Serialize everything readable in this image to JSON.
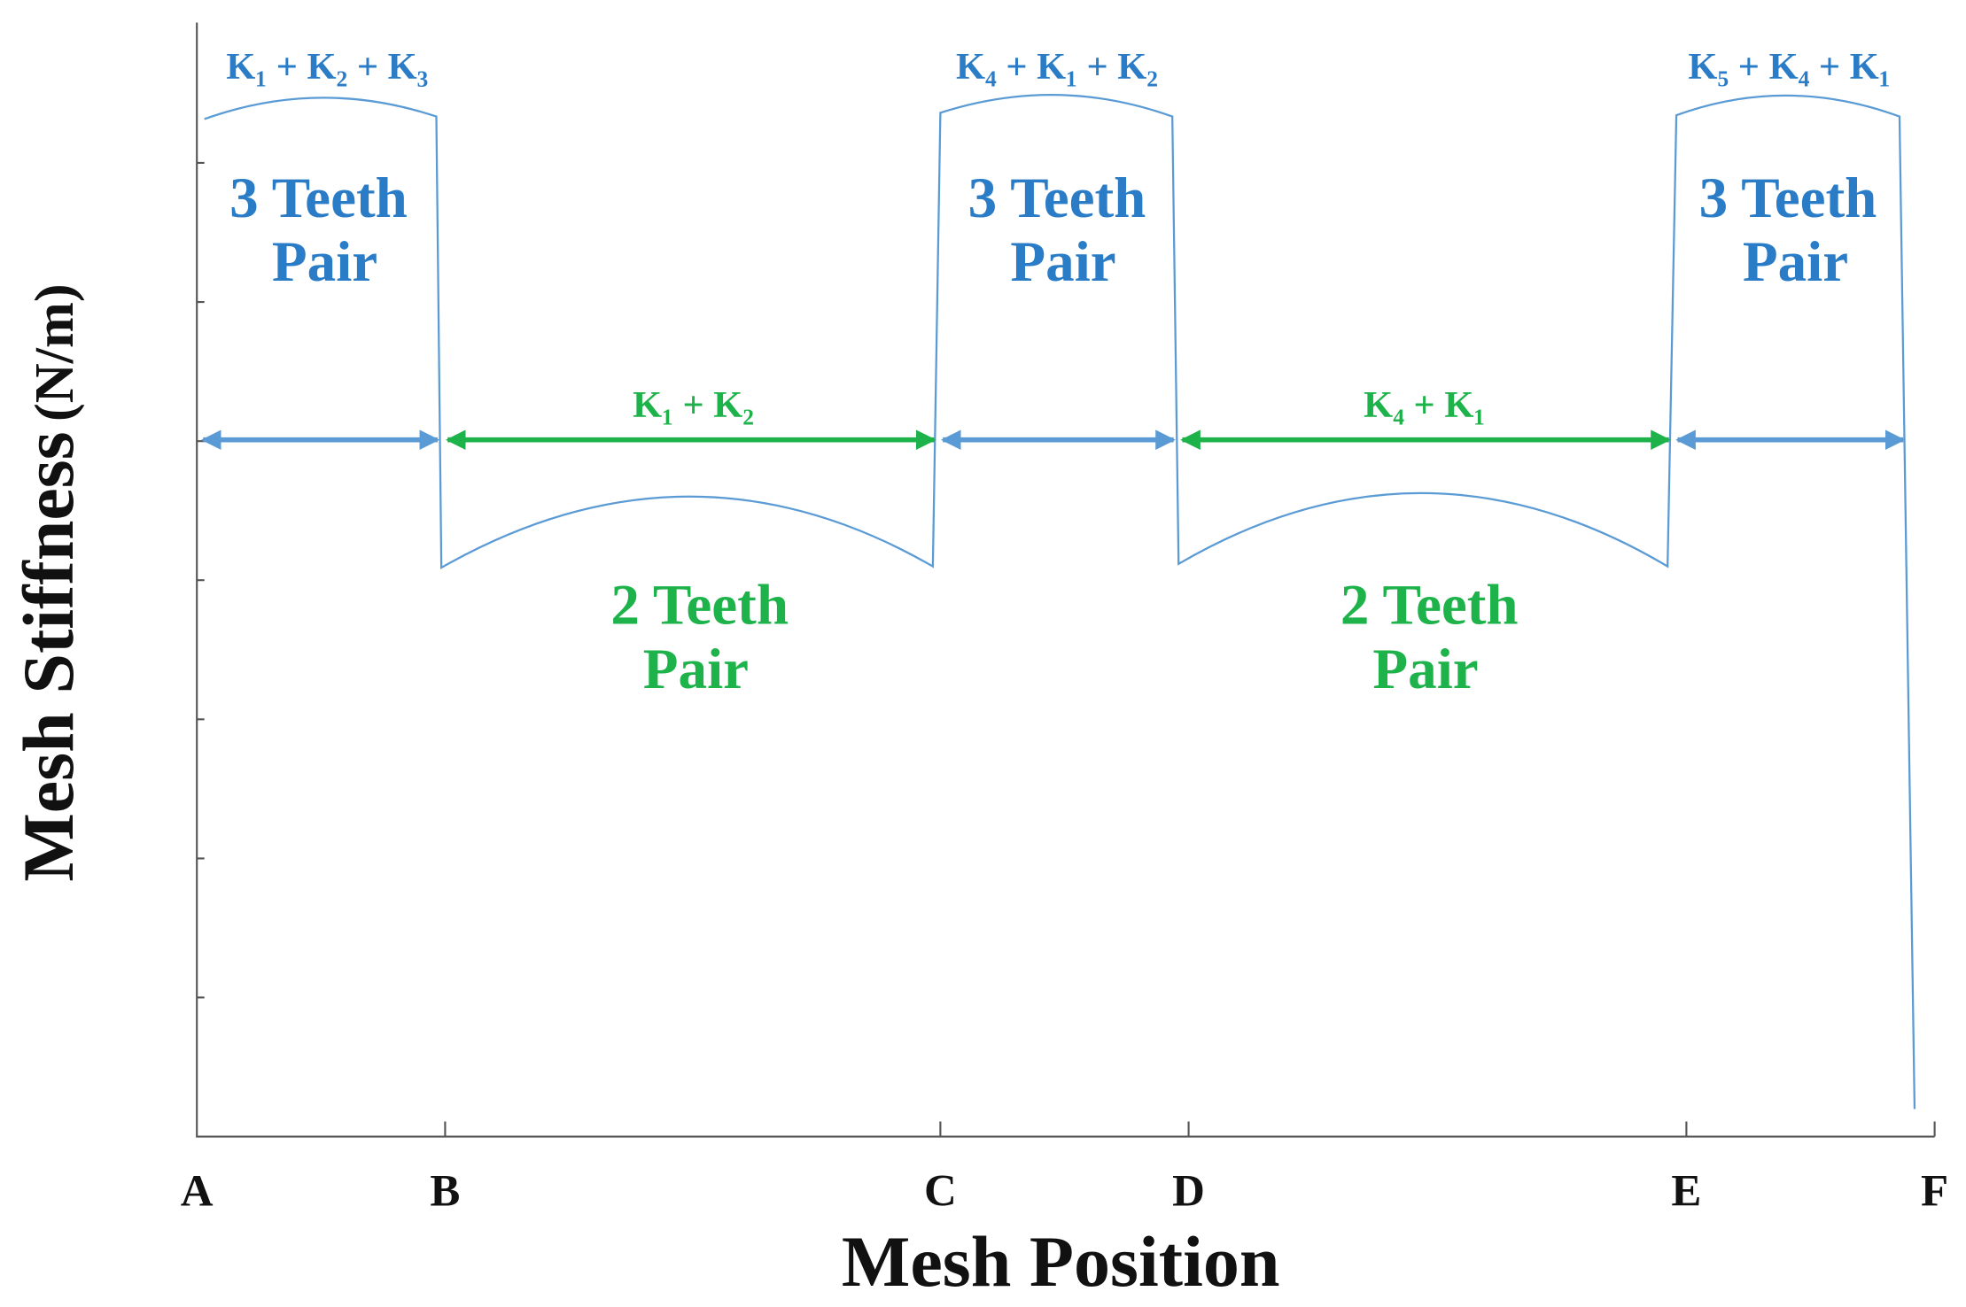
{
  "axes": {
    "y_label": "Mesh Stiffness",
    "y_unit": "(N/m)",
    "x_label": "Mesh Position",
    "x_ticks": [
      "A",
      "B",
      "C",
      "D",
      "E",
      "F"
    ]
  },
  "regions": [
    {
      "stiffness": "K₁ + K₂ + K₃",
      "line1": "3 Teeth",
      "line2": "Pair"
    },
    {
      "stiffness": "K₁ + K₂",
      "line1": "2 Teeth",
      "line2": "Pair"
    },
    {
      "stiffness": "K₄ + K₁ + K₂",
      "line1": "3 Teeth",
      "line2": "Pair"
    },
    {
      "stiffness": "K₄ + K₁",
      "line1": "2 Teeth",
      "line2": "Pair"
    },
    {
      "stiffness": "K₅ + K₄ + K₁",
      "line1": "3 Teeth",
      "line2": "Pair"
    }
  ]
}
